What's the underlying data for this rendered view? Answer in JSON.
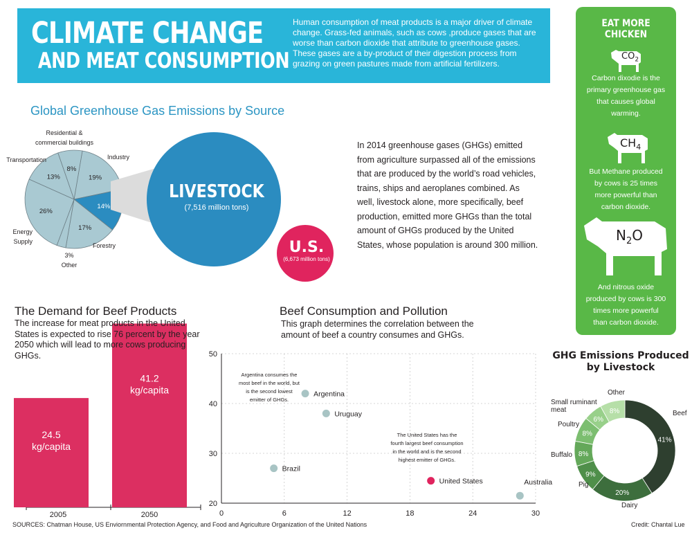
{
  "header": {
    "title_line1": "CLIMATE CHANGE",
    "title_line2": "AND MEAT CONSUMPTION",
    "description": "Human consumption of meat products is a major driver of climate change. Grass-fed animals, such as cows ,produce gases that are worse than carbon dioxide that attribute to greenhouse gases. These gases are a by-product of their digestion process from grazing on green pastures made from artificial fertilizers."
  },
  "eat_more_chicken": {
    "title": "EAT MORE CHICKEN",
    "items": [
      {
        "gas": "CO",
        "sub": "2",
        "note": "Carbon dixodie is the primary greenhouse gas that causes global warming."
      },
      {
        "gas": "CH",
        "sub": "4",
        "note": "But Methane produced by cows is 25 times more powerful than carbon dioxide."
      },
      {
        "gas": "N",
        "sub": "2",
        "gas_after": "O",
        "note": "And nitrous oxide produced by cows is 300 times more powerful than carbon dioxide."
      }
    ]
  },
  "ghg_by_source": {
    "title": "Global Greenhouse Gas Emissions by Source",
    "livestock_label": "LIVESTOCK",
    "livestock_value": "(7,516 million tons)",
    "us_label": "U.S.",
    "us_value": "(6,673 million tons)"
  },
  "body_text": "In 2014 greenhouse gases (GHGs) emitted from agriculture surpassed all of the emissions  that are produced by the world’s road vehicles, trains, ships and aeroplanes combined. As well, livestock alone, more specifically, beef production, emitted more GHGs than the total amount of GHGs produced by the United States, whose population is around 300 million.",
  "demand": {
    "title": "The Demand for Beef Products",
    "description": "The increase for meat products in the United States is expected to rise 76 percent by the year 2050 which will lead to more cows producing GHGs."
  },
  "beef_pollution": {
    "title": "Beef Consumption and Pollution",
    "description": "This graph determines the correlation between the amount of beef a country consumes and GHGs."
  },
  "livestock_ghg": {
    "title_line1": "GHG Emissions Produced",
    "title_line2": "by Livestock"
  },
  "footer": {
    "sources": "SOURCES: Chatman House, US Enviornmental Protection Agency, and Food and Agriculture Organization of the United Nations",
    "credit": "Credit: Chantal Lue"
  },
  "colors": {
    "header_blue": "#29b5d9",
    "green": "#59b847",
    "livestock_blue": "#2b8cc0",
    "us_red": "#e0245e",
    "bar_red": "#dc2f61",
    "pie_gray": "#a9c9d2"
  },
  "chart_data": [
    {
      "type": "pie",
      "categories": [
        "Industry",
        "Livestock",
        "Forestry",
        "Other",
        "Energy Supply",
        "Transportation",
        "Residential & commercial buildings"
      ],
      "values": [
        19,
        14,
        17,
        3,
        26,
        13,
        8
      ],
      "labels": [
        "19%",
        "14%",
        "17%",
        "3%",
        "26%",
        "13%",
        "8%"
      ],
      "outer_labels": [
        "Industry",
        "",
        "Forestry",
        "3%\nOther",
        "Energy\nSupply",
        "Transportation",
        "Residential &\ncommercial buildings"
      ]
    },
    {
      "type": "bar",
      "categories": [
        "2005",
        "2050"
      ],
      "values": [
        24.5,
        41.2
      ],
      "data_labels": [
        "24.5\nkg/capita",
        "41.2\nkg/capita"
      ]
    },
    {
      "type": "scatter",
      "xlim": [
        0,
        30
      ],
      "ylim": [
        20,
        50
      ],
      "xticks": [
        "0",
        "6",
        "12",
        "18",
        "24",
        "30"
      ],
      "yticks": [
        "20",
        "30",
        "40",
        "50"
      ],
      "grid": true,
      "points": [
        {
          "name": "Argentina",
          "x": 8,
          "y": 42,
          "color": "#a8c4c4"
        },
        {
          "name": "Uruguay",
          "x": 10,
          "y": 38,
          "color": "#a8c4c4"
        },
        {
          "name": "Brazil",
          "x": 5,
          "y": 27,
          "color": "#a8c4c4"
        },
        {
          "name": "United States",
          "x": 20,
          "y": 24.5,
          "color": "#e0245e"
        },
        {
          "name": "Australia",
          "x": 28.5,
          "y": 21.5,
          "color": "#a8c4c4"
        }
      ],
      "annotations": [
        "Argentina consumes the\nmost beef in the world, but\nis the second lowest\nemitter of GHGs.",
        "The United States has the\nfourth largest beef consumption\nin the world and is the second\nhighest emitter of GHGs."
      ]
    },
    {
      "type": "pie",
      "subtype": "donut",
      "categories": [
        "Beef",
        "Dairy",
        "Pig",
        "Buffalo",
        "Poultry",
        "Small ruminant meat",
        "Other"
      ],
      "values": [
        41,
        20,
        9,
        8,
        8,
        6,
        8
      ],
      "labels": [
        "41%",
        "20%",
        "9%",
        "8%",
        "8%",
        "6%",
        "8%"
      ],
      "colors": [
        "#2e3f2f",
        "#3d6e3d",
        "#4f8f4a",
        "#64a85a",
        "#7cbe70",
        "#98d08a",
        "#b6dfa8"
      ]
    }
  ]
}
